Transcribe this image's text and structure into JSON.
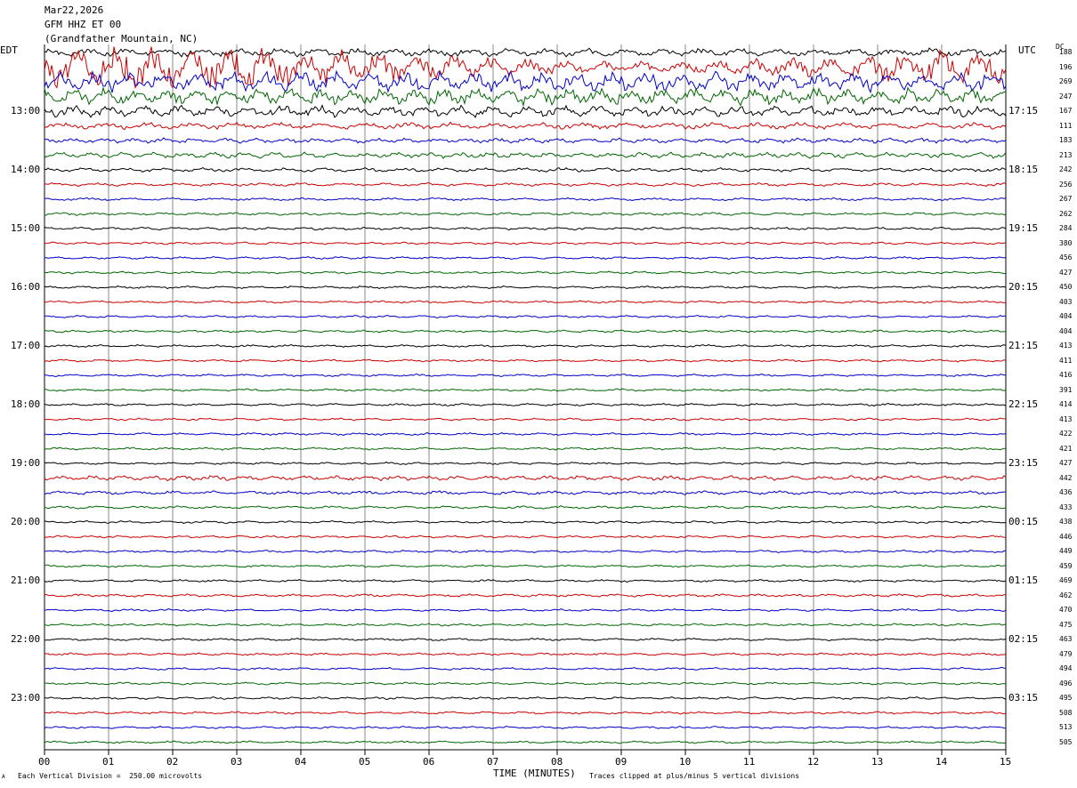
{
  "header": {
    "date": "Mar22,2026",
    "station": "GFM HHZ ET 00",
    "location": "(Grandfather Mountain, NC)"
  },
  "left_timezone": "EDT",
  "right_timezone": "UTC",
  "dc_label": "DC",
  "footer": {
    "left_mark": "A",
    "scale_note": "Each Vertical Division =  250.00 microvolts",
    "x_title": "TIME (MINUTES)",
    "clip_note": "Traces clipped at plus/minus 5 vertical divisions"
  },
  "colors": {
    "trace_cycle": [
      "#000000",
      "#cc0000",
      "#0000cc",
      "#006600"
    ],
    "grid": "#888888"
  },
  "chart_data": {
    "type": "line",
    "title": "GFM HHZ ET 00",
    "xlabel": "TIME (MINUTES)",
    "ylabel": "",
    "x_ticks": [
      "00",
      "01",
      "02",
      "03",
      "04",
      "05",
      "06",
      "07",
      "08",
      "09",
      "10",
      "11",
      "12",
      "13",
      "14",
      "15"
    ],
    "xlim": [
      0,
      15
    ],
    "left_hour_labels": [
      "13:00",
      "14:00",
      "15:00",
      "16:00",
      "17:00",
      "18:00",
      "19:00",
      "20:00",
      "21:00",
      "22:00",
      "23:00"
    ],
    "right_hour_labels": [
      "17:15",
      "18:15",
      "19:15",
      "20:15",
      "21:15",
      "22:15",
      "23:15",
      "00:15",
      "01:15",
      "02:15",
      "03:15"
    ],
    "dc_offsets": [
      188,
      196,
      269,
      247,
      167,
      111,
      183,
      213,
      242,
      256,
      267,
      262,
      284,
      380,
      456,
      427,
      450,
      403,
      404,
      404,
      413,
      411,
      416,
      391,
      414,
      413,
      422,
      421,
      427,
      442,
      436,
      433,
      438,
      446,
      449,
      459,
      469,
      462,
      470,
      475,
      463,
      479,
      494,
      496,
      495,
      508,
      513,
      505
    ],
    "trace_amplitude_divisions": [
      1.0,
      3.6,
      2.4,
      2.0,
      1.4,
      0.8,
      0.6,
      0.7,
      0.5,
      0.4,
      0.35,
      0.35,
      0.35,
      0.3,
      0.3,
      0.3,
      0.3,
      0.3,
      0.3,
      0.3,
      0.3,
      0.3,
      0.3,
      0.3,
      0.3,
      0.3,
      0.3,
      0.3,
      0.3,
      0.6,
      0.45,
      0.35,
      0.3,
      0.3,
      0.3,
      0.3,
      0.3,
      0.35,
      0.3,
      0.3,
      0.3,
      0.3,
      0.3,
      0.3,
      0.3,
      0.3,
      0.3,
      0.3
    ]
  }
}
